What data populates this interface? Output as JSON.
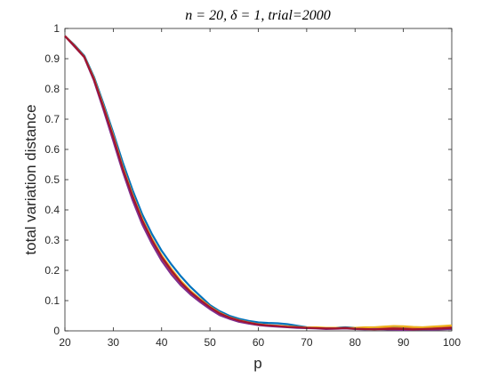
{
  "chart_data": {
    "type": "line",
    "title": "n = 20, δ = 1, trial=2000",
    "xlabel": "p",
    "ylabel": "total variation distance",
    "xlim": [
      20,
      100
    ],
    "ylim": [
      0,
      1
    ],
    "xticks": [
      20,
      30,
      40,
      50,
      60,
      70,
      80,
      90,
      100
    ],
    "yticks": [
      0,
      0.1,
      0.2,
      0.3,
      0.4,
      0.5,
      0.6,
      0.7,
      0.8,
      0.9,
      1
    ],
    "ytick_labels": [
      "0",
      "0.1",
      "0.2",
      "0.3",
      "0.4",
      "0.5",
      "0.6",
      "0.7",
      "0.8",
      "0.9",
      "1"
    ],
    "grid": false,
    "box": true,
    "x": [
      20,
      22,
      24,
      26,
      28,
      30,
      32,
      34,
      36,
      38,
      40,
      42,
      44,
      46,
      48,
      50,
      52,
      54,
      56,
      58,
      60,
      62,
      64,
      66,
      68,
      70,
      72,
      74,
      76,
      78,
      80,
      82,
      84,
      86,
      88,
      90,
      92,
      94,
      96,
      98,
      100
    ],
    "series": [
      {
        "color": "#0072BD",
        "values": [
          0.975,
          0.945,
          0.91,
          0.84,
          0.75,
          0.655,
          0.555,
          0.465,
          0.385,
          0.32,
          0.265,
          0.22,
          0.18,
          0.145,
          0.115,
          0.085,
          0.065,
          0.05,
          0.04,
          0.033,
          0.028,
          0.026,
          0.025,
          0.022,
          0.017,
          0.012,
          0.01,
          0.01,
          0.01,
          0.012,
          0.01,
          0.008,
          0.008,
          0.01,
          0.012,
          0.013,
          0.012,
          0.01,
          0.009,
          0.01,
          0.01
        ]
      },
      {
        "color": "#D95319",
        "values": [
          0.975,
          0.94,
          0.905,
          0.83,
          0.735,
          0.635,
          0.53,
          0.44,
          0.36,
          0.295,
          0.24,
          0.195,
          0.155,
          0.125,
          0.1,
          0.075,
          0.055,
          0.042,
          0.032,
          0.025,
          0.02,
          0.017,
          0.015,
          0.014,
          0.012,
          0.01,
          0.009,
          0.008,
          0.009,
          0.01,
          0.008,
          0.007,
          0.009,
          0.01,
          0.009,
          0.008,
          0.007,
          0.008,
          0.01,
          0.012,
          0.014
        ]
      },
      {
        "color": "#EDB120",
        "values": [
          0.975,
          0.943,
          0.907,
          0.835,
          0.742,
          0.645,
          0.54,
          0.45,
          0.37,
          0.305,
          0.25,
          0.205,
          0.165,
          0.132,
          0.105,
          0.08,
          0.06,
          0.045,
          0.035,
          0.028,
          0.022,
          0.019,
          0.017,
          0.015,
          0.013,
          0.011,
          0.012,
          0.01,
          0.01,
          0.008,
          0.01,
          0.012,
          0.012,
          0.014,
          0.016,
          0.015,
          0.013,
          0.012,
          0.014,
          0.016,
          0.018
        ]
      },
      {
        "color": "#7E2F8E",
        "values": [
          0.975,
          0.94,
          0.905,
          0.828,
          0.73,
          0.628,
          0.525,
          0.432,
          0.352,
          0.288,
          0.232,
          0.187,
          0.15,
          0.12,
          0.095,
          0.072,
          0.052,
          0.04,
          0.03,
          0.024,
          0.019,
          0.016,
          0.014,
          0.012,
          0.01,
          0.009,
          0.008,
          0.006,
          0.007,
          0.008,
          0.006,
          0.005,
          0.006,
          0.005,
          0.004,
          0.003,
          0.004,
          0.005,
          0.004,
          0.005,
          0.006
        ]
      },
      {
        "color": "#A2142F",
        "values": [
          0.975,
          0.942,
          0.906,
          0.832,
          0.738,
          0.64,
          0.535,
          0.445,
          0.365,
          0.3,
          0.245,
          0.2,
          0.16,
          0.128,
          0.102,
          0.078,
          0.058,
          0.044,
          0.034,
          0.027,
          0.021,
          0.018,
          0.016,
          0.013,
          0.012,
          0.01,
          0.009,
          0.008,
          0.008,
          0.009,
          0.007,
          0.006,
          0.005,
          0.006,
          0.007,
          0.006,
          0.005,
          0.006,
          0.007,
          0.008,
          0.01
        ]
      }
    ]
  }
}
